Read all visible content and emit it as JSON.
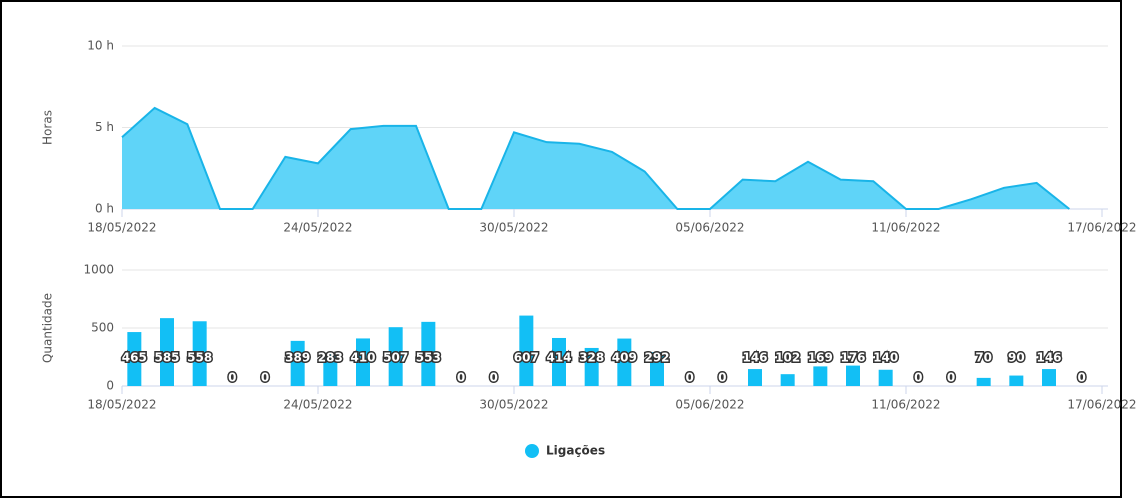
{
  "chart_data": [
    {
      "type": "area",
      "y_label": "Horas",
      "x": [
        "18/05/2022",
        "19/05/2022",
        "20/05/2022",
        "21/05/2022",
        "22/05/2022",
        "23/05/2022",
        "24/05/2022",
        "25/05/2022",
        "26/05/2022",
        "27/05/2022",
        "28/05/2022",
        "29/05/2022",
        "30/05/2022",
        "31/05/2022",
        "01/06/2022",
        "02/06/2022",
        "03/06/2022",
        "04/06/2022",
        "05/06/2022",
        "06/06/2022",
        "07/06/2022",
        "08/06/2022",
        "09/06/2022",
        "10/06/2022",
        "11/06/2022",
        "12/06/2022",
        "13/06/2022",
        "14/06/2022",
        "15/06/2022",
        "16/06/2022"
      ],
      "values": [
        4.4,
        6.2,
        5.2,
        0,
        0,
        3.2,
        2.8,
        4.9,
        5.1,
        5.1,
        0,
        0,
        4.7,
        4.1,
        4.0,
        3.5,
        2.3,
        0,
        0,
        1.8,
        1.7,
        2.9,
        1.8,
        1.7,
        0,
        0,
        0.6,
        1.3,
        1.6,
        0
      ],
      "color": "#5fd4f8",
      "line_color": "#19b4e8",
      "ylim": [
        0,
        10
      ],
      "yticks": [
        {
          "value": 0,
          "label": "0 h"
        },
        {
          "value": 5,
          "label": "5 h"
        },
        {
          "value": 10,
          "label": "10 h"
        }
      ],
      "xticks": [
        "18/05/2022",
        "24/05/2022",
        "30/05/2022",
        "05/06/2022",
        "11/06/2022",
        "17/06/2022"
      ],
      "grid": true
    },
    {
      "type": "bar",
      "y_label": "Quantidade",
      "x": [
        "18/05/2022",
        "19/05/2022",
        "20/05/2022",
        "21/05/2022",
        "22/05/2022",
        "23/05/2022",
        "24/05/2022",
        "25/05/2022",
        "26/05/2022",
        "27/05/2022",
        "28/05/2022",
        "29/05/2022",
        "30/05/2022",
        "31/05/2022",
        "01/06/2022",
        "02/06/2022",
        "03/06/2022",
        "04/06/2022",
        "05/06/2022",
        "06/06/2022",
        "07/06/2022",
        "08/06/2022",
        "09/06/2022",
        "10/06/2022",
        "11/06/2022",
        "12/06/2022",
        "13/06/2022",
        "14/06/2022",
        "15/06/2022",
        "16/06/2022"
      ],
      "series": [
        {
          "name": "Ligações",
          "color": "#12bff5",
          "values": [
            465,
            585,
            558,
            0,
            0,
            389,
            283,
            410,
            507,
            553,
            0,
            0,
            607,
            414,
            328,
            409,
            292,
            0,
            0,
            146,
            102,
            169,
            176,
            140,
            0,
            0,
            70,
            90,
            146,
            0
          ]
        }
      ],
      "ylim": [
        0,
        1000
      ],
      "yticks": [
        0,
        500,
        1000
      ],
      "xticks": [
        "18/05/2022",
        "24/05/2022",
        "30/05/2022",
        "05/06/2022",
        "11/06/2022",
        "17/06/2022"
      ],
      "grid": true
    }
  ]
}
